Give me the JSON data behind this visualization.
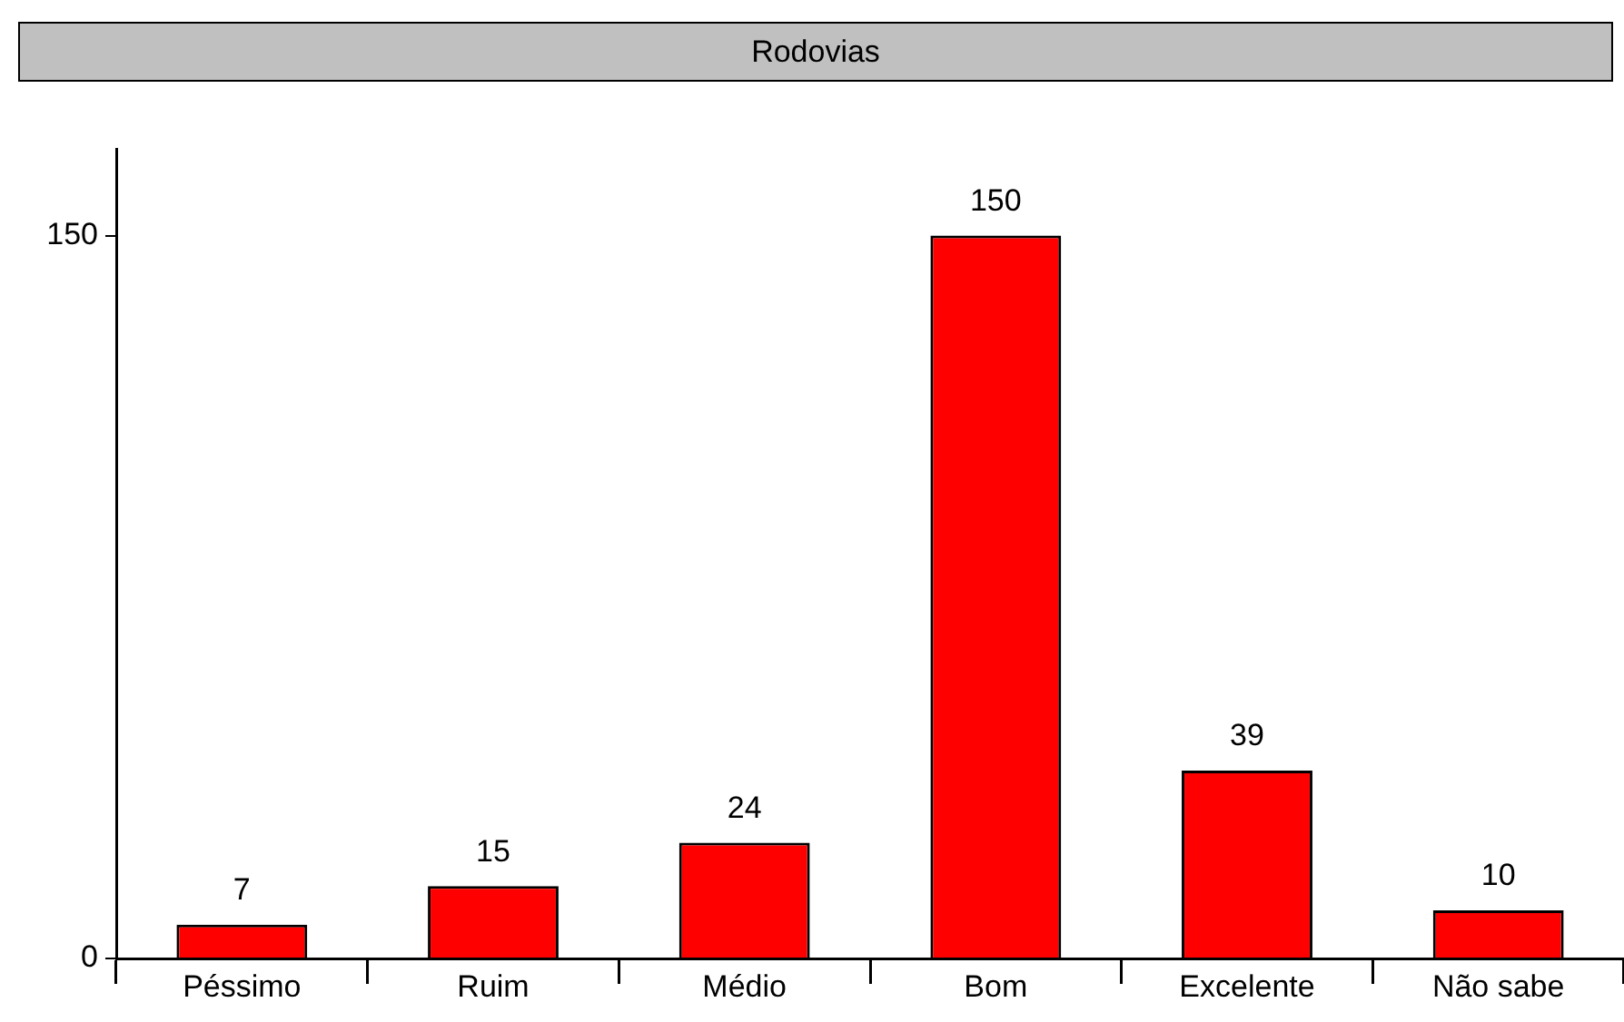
{
  "chart_data": {
    "type": "bar",
    "title": "Rodovias",
    "categories": [
      "Péssimo",
      "Ruim",
      "Médio",
      "Bom",
      "Excelente",
      "Não sabe"
    ],
    "values": [
      7,
      15,
      24,
      150,
      39,
      10
    ],
    "color": "#ff0000",
    "ylim": [
      0,
      168
    ],
    "yticks": [
      0,
      150
    ],
    "grid": false,
    "data_labels": true
  }
}
